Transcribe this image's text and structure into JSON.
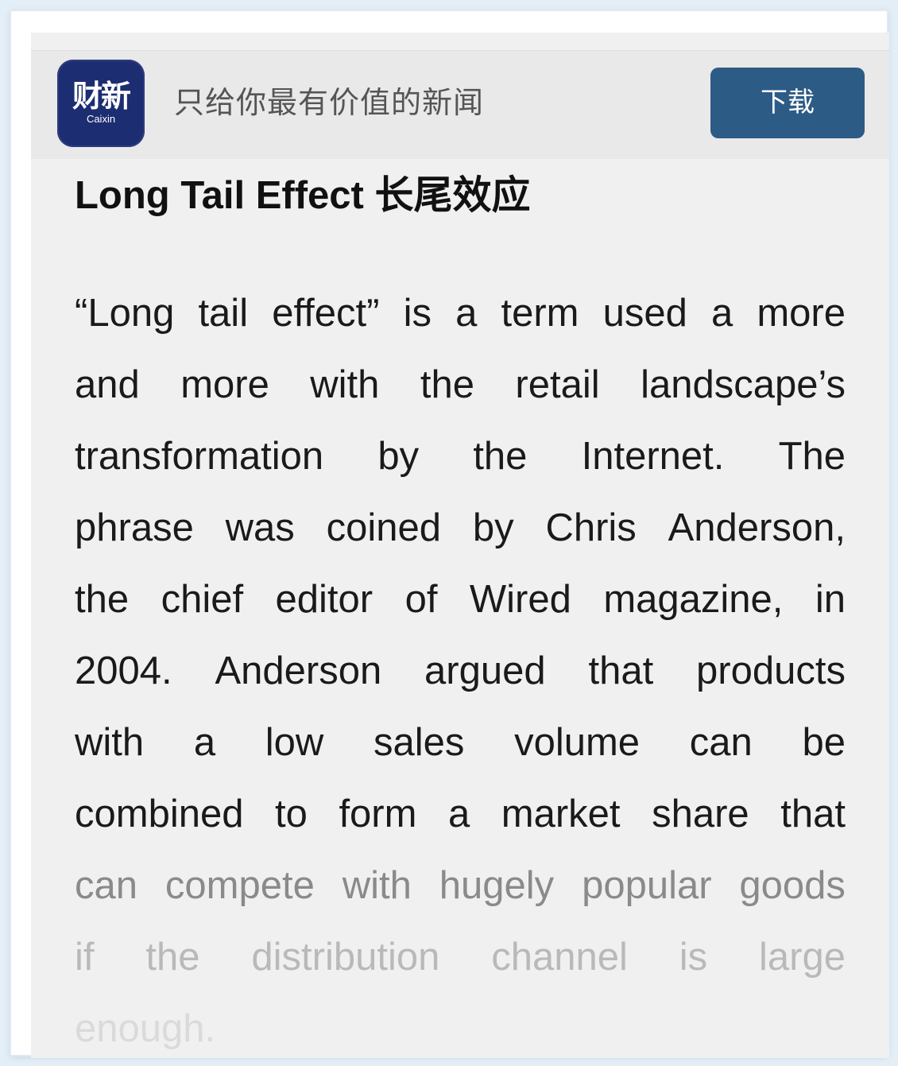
{
  "banner": {
    "logo_cn": "财新",
    "logo_en": "Caixin",
    "tagline": "只给你最有价值的新闻",
    "download_label": "下载",
    "colors": {
      "logo_bg": "#1d2d72",
      "button_bg": "#2c5b85"
    }
  },
  "article": {
    "title": "Long Tail Effect 长尾效应",
    "lines": [
      [
        "“Long",
        "tail",
        "effect”",
        "is",
        "a",
        "term",
        "used",
        "a",
        "more"
      ],
      [
        "and",
        "more",
        "with",
        "the",
        "retail",
        "landscape’s"
      ],
      [
        "transformation",
        "by",
        "the",
        "Internet.",
        "The"
      ],
      [
        "phrase",
        "was",
        "coined",
        "by",
        "Chris",
        "Anderson,"
      ],
      [
        "the",
        "chief",
        "editor",
        "of",
        "Wired",
        "magazine,",
        "in"
      ],
      [
        "2004.",
        "Anderson",
        "argued",
        "that",
        "products"
      ],
      [
        "with",
        "a",
        "low",
        "sales",
        "volume",
        "can",
        "be"
      ],
      [
        "combined",
        "to",
        "form",
        "a",
        "market",
        "share",
        "that"
      ],
      [
        "can",
        "compete",
        "with",
        "hugely",
        "popular",
        "goods"
      ],
      [
        "if",
        "the",
        "distribution",
        "channel",
        "is",
        "large"
      ],
      [
        "enough."
      ]
    ]
  }
}
